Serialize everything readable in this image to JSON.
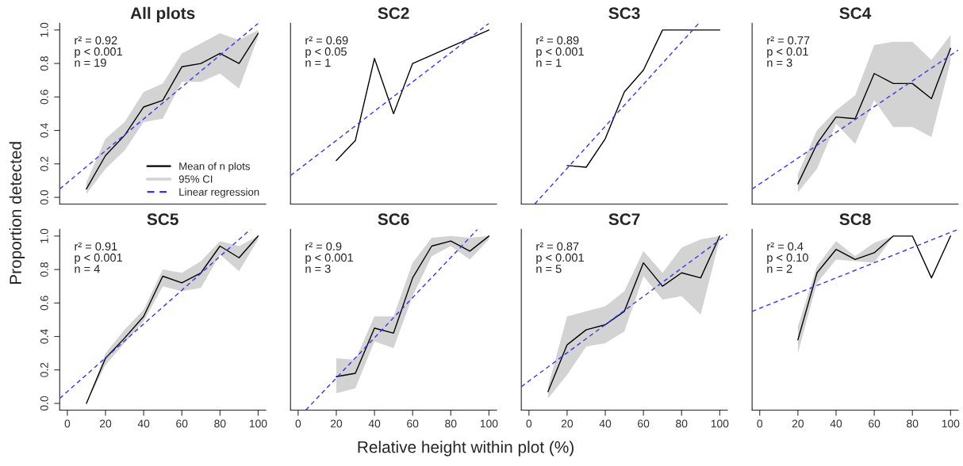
{
  "chart_data": [
    {
      "type": "line",
      "title": "All plots",
      "ylabel": "Proportion detected",
      "annotations": [
        "r² = 0.92",
        "p < 0.001",
        "n = 19",
        {
          "text": "95% CI"
        }
      ],
      "xlim": [
        -4,
        104
      ],
      "ylim": [
        -0.04,
        1.04
      ],
      "yticks": [
        {
          "value": 0,
          "label": "0.0"
        },
        {
          "value": 0.2,
          "label": "0.2"
        },
        {
          "value": 0.4,
          "label": "0.4"
        },
        {
          "value": 0.6,
          "label": "0.6"
        },
        {
          "value": 0.8,
          "label": "0.8"
        },
        {
          "value": 1,
          "label": "1.0"
        }
      ],
      "tick_labels": "y",
      "legend": "bottom right",
      "series": [
        {
          "type": "line",
          "name": "Mean of n plots",
          "color": "#000000",
          "line_style": "solid",
          "x": [
            10,
            20,
            30,
            40,
            50,
            60,
            70,
            80,
            90,
            100
          ],
          "values": [
            0.05,
            0.25,
            0.37,
            0.54,
            0.58,
            0.78,
            0.8,
            0.86,
            0.8,
            0.98
          ],
          "lower": [
            0.02,
            0.17,
            0.28,
            0.45,
            0.47,
            0.69,
            0.69,
            0.74,
            0.65,
            0.96
          ],
          "upper": [
            0.09,
            0.35,
            0.45,
            0.63,
            0.68,
            0.86,
            0.92,
            0.98,
            0.94,
            1.0
          ]
        },
        {
          "type": "line",
          "name": "Linear regression",
          "color": "#3333ff",
          "line_style": "dashed",
          "x": [
            -4,
            100
          ],
          "values": [
            0.05,
            1.04
          ]
        }
      ]
    },
    {
      "type": "line",
      "title": "SC2",
      "annotations": [
        "r² = 0.69",
        "p < 0.05",
        "n = 1"
      ],
      "xlim": [
        -4,
        104
      ],
      "ylim": [
        -0.04,
        1.04
      ],
      "tick_labels": false,
      "series": [
        {
          "type": "line",
          "color": "#000000",
          "line_style": "solid",
          "x": [
            20,
            30,
            40,
            50,
            60,
            70,
            80,
            90,
            100
          ],
          "values": [
            0.22,
            0.34,
            0.83,
            0.5,
            0.8,
            0.85,
            0.9,
            0.95,
            1.0
          ]
        },
        {
          "type": "line",
          "color": "#3333ff",
          "line_style": "dashed",
          "x": [
            -4,
            100
          ],
          "values": [
            0.13,
            1.04
          ]
        }
      ]
    },
    {
      "type": "line",
      "title": "SC3",
      "annotations": [
        "r² = 0.89",
        "p < 0.001",
        "n = 1"
      ],
      "xlim": [
        -4,
        104
      ],
      "ylim": [
        -0.04,
        1.04
      ],
      "tick_labels": false,
      "series": [
        {
          "type": "line",
          "color": "#000000",
          "line_style": "solid",
          "x": [
            20,
            30,
            40,
            50,
            60,
            70,
            80,
            90,
            100
          ],
          "values": [
            0.19,
            0.18,
            0.35,
            0.63,
            0.76,
            1.0,
            1.0,
            1.0,
            1.0
          ]
        },
        {
          "type": "line",
          "color": "#3333ff",
          "line_style": "dashed",
          "x": [
            3,
            89
          ],
          "values": [
            -0.04,
            1.04
          ]
        }
      ]
    },
    {
      "type": "line",
      "title": "SC4",
      "annotations": [
        "r² = 0.77",
        "p < 0.01",
        "n = 3"
      ],
      "xlim": [
        -4,
        104
      ],
      "ylim": [
        -0.04,
        1.04
      ],
      "tick_labels": false,
      "series": [
        {
          "type": "line",
          "color": "#000000",
          "line_style": "solid",
          "x": [
            20,
            30,
            40,
            50,
            60,
            70,
            80,
            90,
            100
          ],
          "values": [
            0.08,
            0.32,
            0.48,
            0.47,
            0.74,
            0.68,
            0.68,
            0.59,
            0.89
          ],
          "lower": [
            0.03,
            0.17,
            0.44,
            0.32,
            0.58,
            0.42,
            0.42,
            0.36,
            0.81
          ],
          "upper": [
            0.14,
            0.4,
            0.52,
            0.61,
            0.91,
            0.93,
            0.93,
            0.82,
            0.97
          ]
        },
        {
          "type": "line",
          "color": "#3333ff",
          "line_style": "dashed",
          "x": [
            -4,
            104
          ],
          "values": [
            0.05,
            0.88
          ]
        }
      ]
    },
    {
      "type": "line",
      "title": "SC5",
      "annotations": [
        "r² = 0.91",
        "p < 0.001",
        "n = 4"
      ],
      "xlim": [
        -4,
        104
      ],
      "ylim": [
        -0.04,
        1.04
      ],
      "xticks": [
        0,
        20,
        40,
        60,
        80,
        100
      ],
      "yticks": [
        {
          "value": 0,
          "label": "0.0"
        },
        {
          "value": 0.2,
          "label": "0.2"
        },
        {
          "value": 0.4,
          "label": "0.4"
        },
        {
          "value": 0.6,
          "label": "0.6"
        },
        {
          "value": 0.8,
          "label": "0.8"
        },
        {
          "value": 1,
          "label": "1.0"
        }
      ],
      "series": [
        {
          "type": "line",
          "color": "#000000",
          "line_style": "solid",
          "x": [
            10,
            20,
            30,
            40,
            50,
            60,
            70,
            80,
            90,
            100
          ],
          "values": [
            0.0,
            0.27,
            0.39,
            0.52,
            0.76,
            0.72,
            0.78,
            0.94,
            0.87,
            1.0
          ],
          "lower": [
            0.0,
            0.23,
            0.36,
            0.49,
            0.7,
            0.67,
            0.69,
            0.89,
            0.79,
            0.98
          ],
          "upper": [
            0.0,
            0.3,
            0.44,
            0.56,
            0.8,
            0.78,
            0.85,
            0.97,
            0.94,
            1.0
          ]
        },
        {
          "type": "line",
          "color": "#3333ff",
          "line_style": "dashed",
          "x": [
            -4,
            96
          ],
          "values": [
            0.03,
            1.04
          ]
        }
      ]
    },
    {
      "type": "line",
      "title": "SC6",
      "xlabel": "Relative height within plot (%)",
      "annotations": [
        "r² = 0.9",
        "p < 0.001",
        "n = 3"
      ],
      "xlim": [
        -4,
        104
      ],
      "ylim": [
        -0.04,
        1.04
      ],
      "xticks": [
        0,
        20,
        40,
        60,
        80,
        100
      ],
      "tick_labels": "x",
      "series": [
        {
          "type": "line",
          "color": "#000000",
          "line_style": "solid",
          "x": [
            20,
            30,
            40,
            50,
            60,
            70,
            80,
            90,
            100
          ],
          "values": [
            0.16,
            0.18,
            0.45,
            0.42,
            0.75,
            0.94,
            0.97,
            0.91,
            1.0
          ],
          "lower": [
            0.06,
            0.09,
            0.37,
            0.33,
            0.64,
            0.88,
            0.94,
            0.86,
            0.98
          ],
          "upper": [
            0.27,
            0.26,
            0.52,
            0.52,
            0.84,
            0.99,
            1.0,
            0.99,
            1.0
          ]
        },
        {
          "type": "line",
          "color": "#3333ff",
          "line_style": "dashed",
          "x": [
            4,
            94
          ],
          "values": [
            -0.04,
            1.04
          ]
        }
      ]
    },
    {
      "type": "line",
      "title": "SC7",
      "annotations": [
        "r² = 0.87",
        "p < 0.001",
        "n = 5"
      ],
      "xlim": [
        -4,
        104
      ],
      "ylim": [
        -0.04,
        1.04
      ],
      "xticks": [
        0,
        20,
        40,
        60,
        80,
        100
      ],
      "tick_labels": "x",
      "series": [
        {
          "type": "line",
          "color": "#000000",
          "line_style": "solid",
          "x": [
            10,
            20,
            30,
            40,
            50,
            60,
            70,
            80,
            90,
            100
          ],
          "values": [
            0.07,
            0.35,
            0.44,
            0.47,
            0.55,
            0.84,
            0.7,
            0.78,
            0.75,
            1.0
          ],
          "lower": [
            0.03,
            0.17,
            0.34,
            0.36,
            0.43,
            0.76,
            0.62,
            0.64,
            0.53,
            0.98
          ],
          "upper": [
            0.1,
            0.52,
            0.55,
            0.58,
            0.67,
            0.91,
            0.78,
            0.93,
            0.98,
            1.0
          ]
        },
        {
          "type": "line",
          "color": "#3333ff",
          "line_style": "dashed",
          "x": [
            -4,
            104
          ],
          "values": [
            0.1,
            1.01
          ]
        }
      ]
    },
    {
      "type": "line",
      "title": "SC8",
      "annotations": [
        "r² = 0.4",
        "p < 0.10",
        "n = 2"
      ],
      "xlim": [
        -4,
        104
      ],
      "ylim": [
        -0.04,
        1.04
      ],
      "xticks": [
        0,
        20,
        40,
        60,
        80,
        100
      ],
      "tick_labels": "x",
      "series": [
        {
          "type": "line",
          "color": "#000000",
          "line_style": "solid",
          "x": [
            20,
            30,
            40,
            50,
            60,
            70,
            80,
            90,
            100
          ],
          "values": [
            0.38,
            0.78,
            0.92,
            0.86,
            0.9,
            1.0,
            1.0,
            0.75,
            1.0
          ],
          "lower": [
            0.3,
            0.72,
            0.86,
            0.85,
            0.84,
            1.0,
            null,
            null,
            null
          ],
          "upper": [
            0.46,
            0.82,
            0.97,
            0.88,
            0.96,
            1.0,
            null,
            null,
            null
          ]
        },
        {
          "type": "line",
          "color": "#3333ff",
          "line_style": "dashed",
          "x": [
            -4,
            104
          ],
          "values": [
            0.55,
            1.04
          ]
        }
      ]
    }
  ]
}
